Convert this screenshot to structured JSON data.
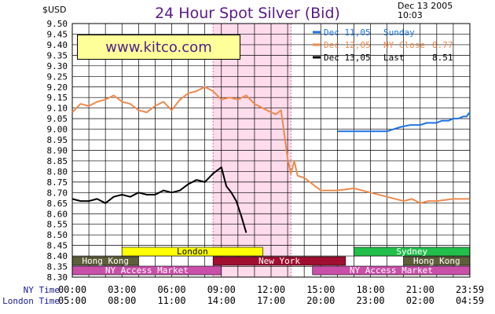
{
  "header": {
    "title": "24 Hour Spot Silver (Bid)",
    "unit": "$USD",
    "date": "Dec 13 2005",
    "time": "10:03"
  },
  "brand": "www.kitco.com",
  "colors": {
    "prev2": "#1a72e0",
    "prev1": "#ef8a4c",
    "current": "#000000",
    "ny_shade": "#ffdcec"
  },
  "chart_data": {
    "type": "line",
    "title": "24 Hour Spot Silver (Bid)",
    "ylabel": "$USD",
    "xlabel": "",
    "ylim": [
      8.3,
      9.5
    ],
    "xlim": [
      0,
      24
    ],
    "grid": true,
    "legend_position": "top-right",
    "y_ticks": [
      "8.30",
      "8.35",
      "8.40",
      "8.45",
      "8.50",
      "8.55",
      "8.60",
      "8.65",
      "8.70",
      "8.75",
      "8.80",
      "8.85",
      "8.90",
      "8.95",
      "9.00",
      "9.05",
      "9.10",
      "9.15",
      "9.20",
      "9.25",
      "9.30",
      "9.35",
      "9.40",
      "9.45",
      "9.50"
    ],
    "x_axis_rows": [
      {
        "label": "NY Time",
        "ticks": [
          "00:00",
          "03:00",
          "06:00",
          "09:00",
          "12:00",
          "15:00",
          "18:00",
          "21:00",
          "23:59"
        ]
      },
      {
        "label": "London Time",
        "ticks": [
          "05:00",
          "08:00",
          "11:00",
          "14:00",
          "17:00",
          "20:00",
          "23:00",
          "02:00",
          "04:59"
        ]
      }
    ],
    "shaded_ranges": [
      {
        "x": [
          8.5,
          13.2
        ]
      }
    ],
    "sessions": [
      {
        "name": "London",
        "row": 0,
        "x": [
          3.0,
          11.5
        ],
        "color": "#ffff00",
        "text_color": "#000000"
      },
      {
        "name": "Sydney",
        "row": 0,
        "x": [
          17.0,
          24.0
        ],
        "color": "#22c04b",
        "text_color": "#ffffff"
      },
      {
        "name": "Hong Kong",
        "row": 1,
        "x": [
          0.0,
          4.0
        ],
        "color": "#5e5e3a",
        "text_color": "#ffffff"
      },
      {
        "name": "New York",
        "row": 1,
        "x": [
          8.5,
          16.5
        ],
        "color": "#a00f30",
        "text_color": "#ffffff"
      },
      {
        "name": "Hong Kong",
        "row": 1,
        "x": [
          20.0,
          24.0
        ],
        "color": "#5e5e3a",
        "text_color": "#ffffff"
      },
      {
        "name": "NY Access Market",
        "row": 2,
        "x": [
          0.0,
          9.0
        ],
        "color": "#c94fa8",
        "text_color": "#ffffff"
      },
      {
        "name": "NY Access Market",
        "row": 2,
        "x": [
          14.5,
          24.0
        ],
        "color": "#c94fa8",
        "text_color": "#ffffff"
      }
    ],
    "series": [
      {
        "name": "Dec 11,05",
        "legend": [
          "Dec 11,05",
          "Sunday"
        ],
        "color": "#1a72e0",
        "x": [
          16.0,
          17.0,
          18.0,
          19.0,
          19.4,
          19.8,
          20.4,
          21.0,
          21.4,
          22.0,
          22.3,
          22.7,
          23.0,
          23.3,
          23.6,
          23.8,
          23.99
        ],
        "y": [
          8.99,
          8.99,
          8.99,
          8.99,
          9.0,
          9.01,
          9.02,
          9.02,
          9.03,
          9.03,
          9.04,
          9.04,
          9.05,
          9.05,
          9.06,
          9.06,
          9.08
        ]
      },
      {
        "name": "Dec 12,05",
        "legend": [
          "Dec 12,05",
          "NY Close",
          "8.77"
        ],
        "color": "#ef8a4c",
        "x": [
          0.0,
          0.5,
          1.0,
          1.5,
          2.0,
          2.5,
          3.0,
          3.5,
          4.0,
          4.5,
          5.0,
          5.5,
          6.0,
          6.5,
          7.0,
          7.5,
          8.0,
          8.5,
          9.0,
          9.5,
          10.0,
          10.5,
          11.0,
          11.5,
          12.0,
          12.3,
          12.6,
          13.0,
          13.2,
          13.4,
          13.6,
          14.0,
          15.0,
          16.0,
          17.0,
          18.0,
          19.0,
          20.0,
          20.5,
          21.0,
          21.5,
          22.0,
          23.0,
          23.99
        ],
        "y": [
          9.08,
          9.12,
          9.11,
          9.13,
          9.14,
          9.16,
          9.13,
          9.12,
          9.09,
          9.08,
          9.11,
          9.13,
          9.09,
          9.14,
          9.17,
          9.18,
          9.2,
          9.18,
          9.14,
          9.15,
          9.14,
          9.16,
          9.12,
          9.1,
          9.08,
          9.07,
          9.09,
          8.86,
          8.79,
          8.85,
          8.78,
          8.77,
          8.71,
          8.71,
          8.72,
          8.7,
          8.68,
          8.66,
          8.67,
          8.65,
          8.66,
          8.66,
          8.67,
          8.67
        ]
      },
      {
        "name": "Dec 13,05",
        "legend": [
          "Dec 13,05",
          "Last",
          "8.51"
        ],
        "color": "#000000",
        "x": [
          0.0,
          0.5,
          1.0,
          1.5,
          2.0,
          2.5,
          3.0,
          3.5,
          4.0,
          4.5,
          5.0,
          5.5,
          6.0,
          6.5,
          7.0,
          7.5,
          8.0,
          8.5,
          9.0,
          9.3,
          9.6,
          9.9,
          10.2,
          10.5
        ],
        "y": [
          8.67,
          8.66,
          8.66,
          8.67,
          8.65,
          8.68,
          8.69,
          8.68,
          8.7,
          8.69,
          8.69,
          8.71,
          8.7,
          8.71,
          8.74,
          8.76,
          8.75,
          8.79,
          8.82,
          8.73,
          8.7,
          8.66,
          8.59,
          8.51
        ]
      }
    ]
  }
}
